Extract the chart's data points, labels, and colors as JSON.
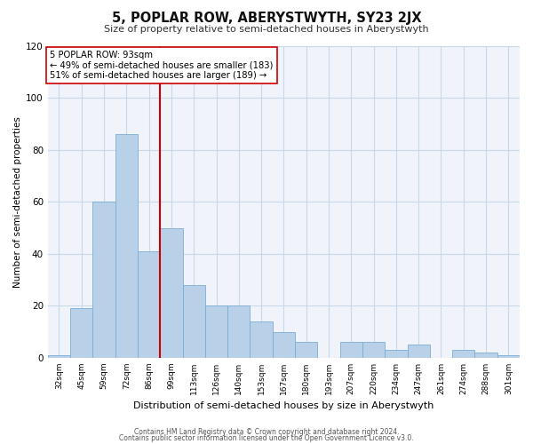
{
  "title": "5, POPLAR ROW, ABERYSTWYTH, SY23 2JX",
  "subtitle": "Size of property relative to semi-detached houses in Aberystwyth",
  "xlabel": "Distribution of semi-detached houses by size in Aberystwyth",
  "ylabel": "Number of semi-detached properties",
  "bin_labels": [
    "32sqm",
    "45sqm",
    "59sqm",
    "72sqm",
    "86sqm",
    "99sqm",
    "113sqm",
    "126sqm",
    "140sqm",
    "153sqm",
    "167sqm",
    "180sqm",
    "193sqm",
    "207sqm",
    "220sqm",
    "234sqm",
    "247sqm",
    "261sqm",
    "274sqm",
    "288sqm",
    "301sqm"
  ],
  "bar_heights": [
    1,
    19,
    60,
    86,
    41,
    50,
    28,
    20,
    20,
    14,
    10,
    6,
    0,
    6,
    6,
    3,
    5,
    0,
    3,
    2,
    1
  ],
  "bar_color": "#b8d0e8",
  "bar_edge_color": "#7aadd4",
  "vline_x": 4.5,
  "vline_color": "#cc0000",
  "property_line_label": "5 POPLAR ROW: 93sqm",
  "annotation_smaller": "← 49% of semi-detached houses are smaller (183)",
  "annotation_larger": "51% of semi-detached houses are larger (189) →",
  "ylim": [
    0,
    120
  ],
  "footer1": "Contains HM Land Registry data © Crown copyright and database right 2024.",
  "footer2": "Contains public sector information licensed under the Open Government Licence v3.0.",
  "background_color": "#f0f4fa",
  "grid_color": "#c8d8e8"
}
